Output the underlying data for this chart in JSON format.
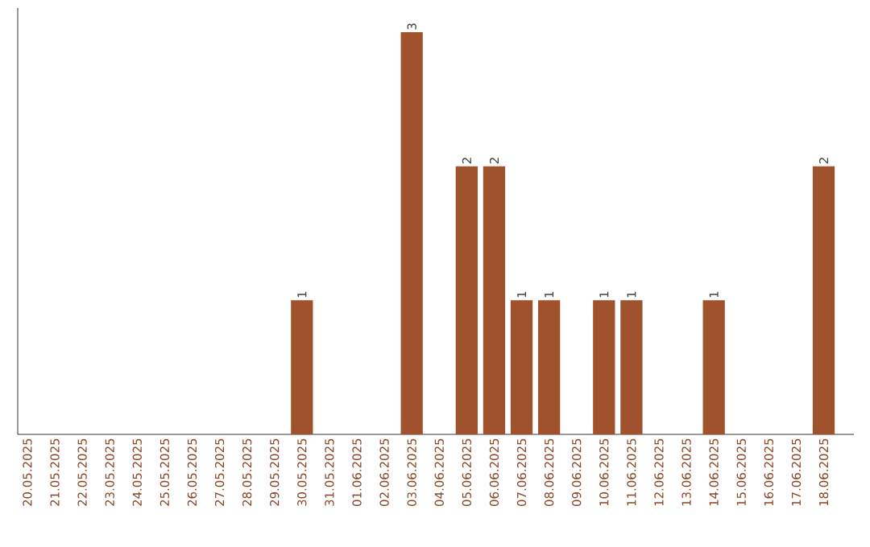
{
  "chart_data": {
    "type": "bar",
    "categories": [
      "20.05.2025",
      "21.05.2025",
      "22.05.2025",
      "23.05.2025",
      "24.05.2025",
      "25.05.2025",
      "26.05.2025",
      "27.05.2025",
      "28.05.2025",
      "29.05.2025",
      "30.05.2025",
      "31.05.2025",
      "01.06.2025",
      "02.06.2025",
      "03.06.2025",
      "04.06.2025",
      "05.06.2025",
      "06.06.2025",
      "07.06.2025",
      "08.06.2025",
      "09.06.2025",
      "10.06.2025",
      "11.06.2025",
      "12.06.2025",
      "13.06.2025",
      "14.06.2025",
      "15.06.2025",
      "16.06.2025",
      "17.06.2025",
      "18.06.2025"
    ],
    "values": [
      0,
      0,
      0,
      0,
      0,
      0,
      0,
      0,
      0,
      0,
      1,
      0,
      0,
      0,
      3,
      0,
      2,
      2,
      1,
      1,
      0,
      1,
      1,
      0,
      0,
      1,
      0,
      0,
      0,
      2
    ],
    "value_labels": [
      null,
      null,
      null,
      null,
      null,
      null,
      null,
      null,
      null,
      null,
      "1",
      null,
      null,
      null,
      "3",
      null,
      "2",
      "2",
      "1",
      "1",
      null,
      "1",
      "1",
      null,
      null,
      "1",
      null,
      null,
      null,
      "2"
    ],
    "color": "#a0522d"
  }
}
